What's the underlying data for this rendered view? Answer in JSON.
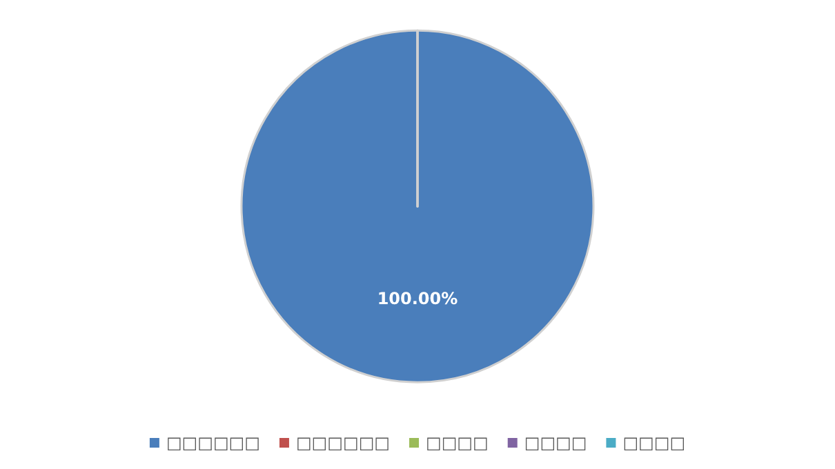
{
  "chart_data": {
    "type": "pie",
    "categories": [
      "□□□□□□",
      "□□□□□□",
      "□□□□",
      "□□□□",
      "□□□□"
    ],
    "values": [
      100,
      0,
      0,
      0,
      0
    ],
    "value_labels": [
      "100.00%",
      null,
      null,
      null,
      null
    ],
    "colors": [
      "#4a7ebb",
      "#c0504d",
      "#9bbb59",
      "#8064a2",
      "#4bacc6"
    ],
    "legend": "bottom"
  }
}
